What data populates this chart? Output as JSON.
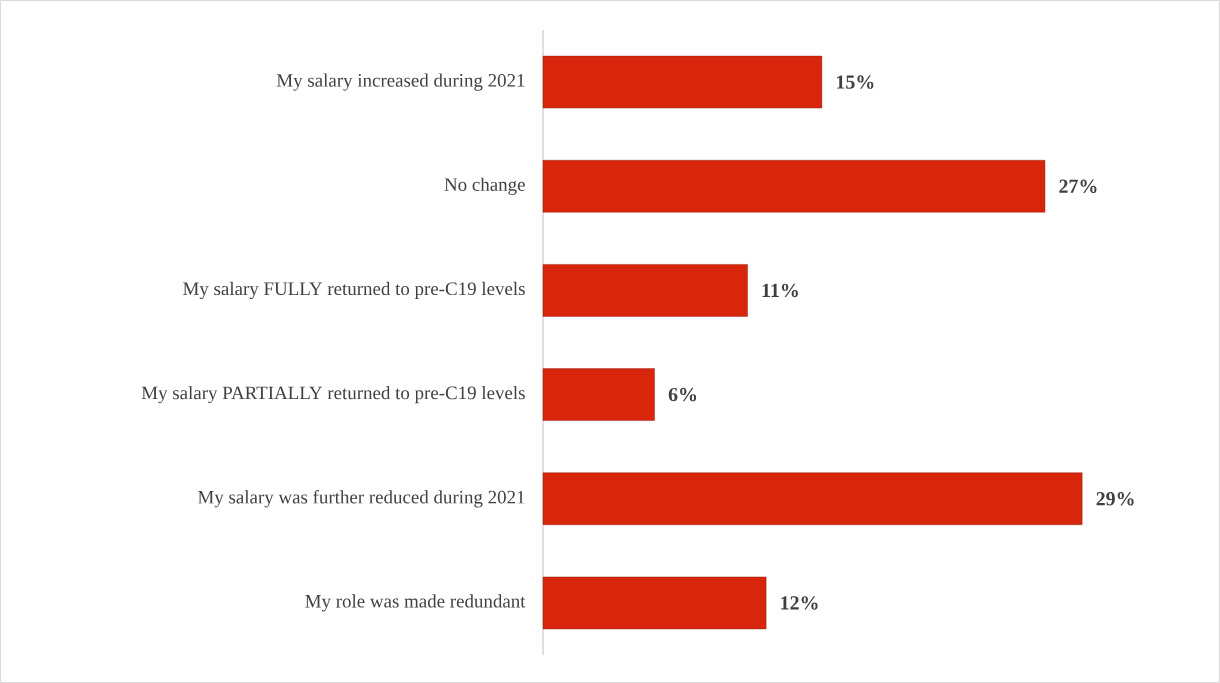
{
  "chart_data": {
    "type": "bar",
    "orientation": "horizontal",
    "categories": [
      "My salary increased during 2021",
      "No change",
      "My salary FULLY returned to pre-C19 levels",
      "My salary PARTIALLY returned to pre-C19 levels",
      "My salary was further reduced during 2021",
      "My role was made redundant"
    ],
    "values": [
      15,
      27,
      11,
      6,
      29,
      12
    ],
    "value_labels": [
      "15%",
      "27%",
      "11%",
      "6%",
      "29%",
      "12%"
    ],
    "color": "#d8260d"
  }
}
